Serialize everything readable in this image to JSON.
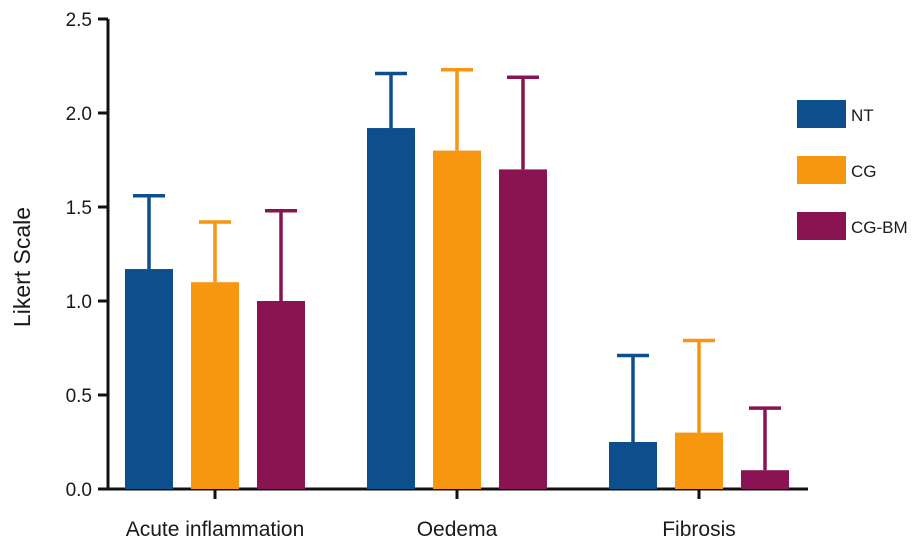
{
  "chart_data": {
    "type": "bar",
    "title": "",
    "xlabel": "",
    "ylabel": "Likert Scale",
    "ylim": [
      0,
      2.5
    ],
    "yticks": [
      "0.0",
      "0.5",
      "1.0",
      "1.5",
      "2.0",
      "2.5"
    ],
    "categories": [
      "Acute inflammation",
      "Oedema",
      "Fibrosis"
    ],
    "series": [
      {
        "name": "NT",
        "color": "#0d4f8c",
        "values": [
          1.17,
          1.92,
          0.25
        ],
        "error": [
          0.39,
          0.29,
          0.46
        ]
      },
      {
        "name": "CG",
        "color": "#f7960f",
        "values": [
          1.1,
          1.8,
          0.3
        ],
        "error": [
          0.32,
          0.43,
          0.49
        ]
      },
      {
        "name": "CG-BM",
        "color": "#8a1452",
        "values": [
          1.0,
          1.7,
          0.1
        ],
        "error": [
          0.48,
          0.49,
          0.33
        ]
      }
    ],
    "error_bars": "upper",
    "legend_position": "right",
    "grid": false
  }
}
